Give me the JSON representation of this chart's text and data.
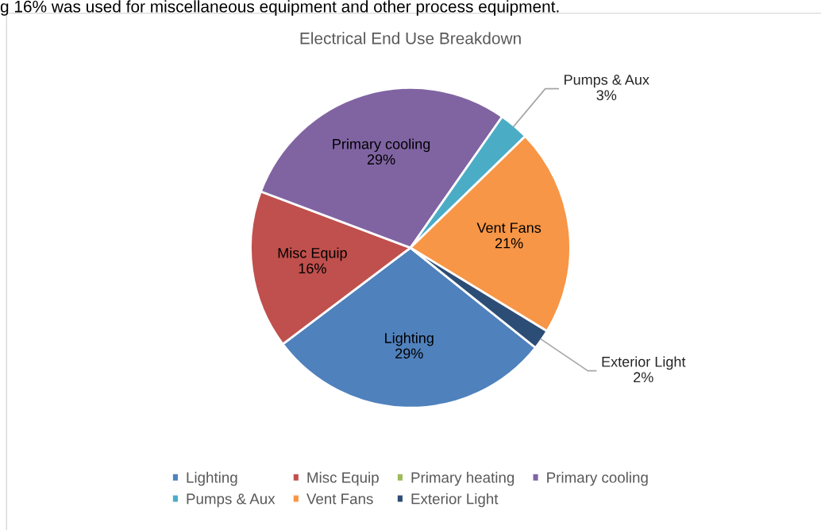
{
  "chart_data": {
    "type": "pie",
    "title": "Electrical End Use Breakdown",
    "categories": [
      "Lighting",
      "Misc Equip",
      "Primary heating",
      "Primary cooling",
      "Pumps & Aux",
      "Vent Fans",
      "Exterior Light"
    ],
    "values": [
      29,
      16,
      0,
      29,
      3,
      21,
      2
    ],
    "colors": [
      "#4f81bd",
      "#c0504d",
      "#9bbb59",
      "#8064a2",
      "#4bacc6",
      "#f79646",
      "#2c4d75"
    ],
    "value_labels": [
      "29%",
      "16%",
      null,
      "29%",
      "3%",
      "21%",
      "2%"
    ],
    "legend": "bottom",
    "annotations": [
      "g 16% was used for miscellaneous equipment and other process equipment."
    ]
  }
}
